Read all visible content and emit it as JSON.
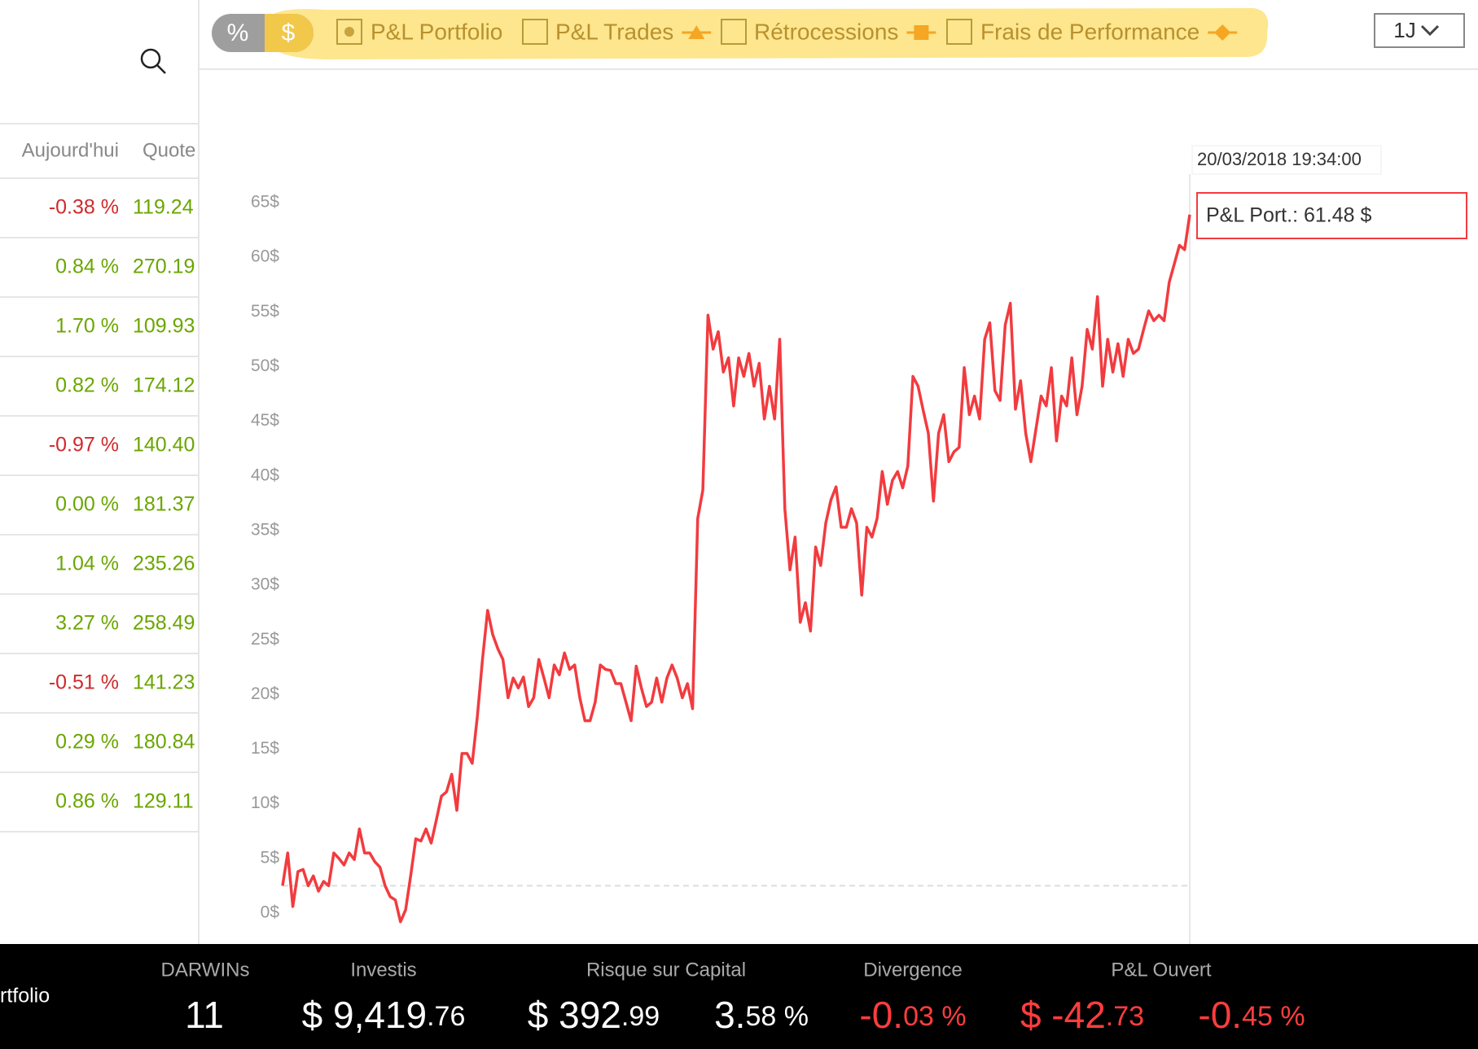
{
  "search_icon": "search",
  "toolbar": {
    "unit_toggle": [
      "%",
      "$"
    ],
    "legend": [
      {
        "label": "P&L Portfolio",
        "checked": true
      },
      {
        "label": "P&L Trades",
        "checked": false
      },
      {
        "label": "Rétrocessions",
        "checked": false
      },
      {
        "label": "Frais de Performance",
        "checked": false
      }
    ],
    "period": "1J"
  },
  "table": {
    "headers": [
      "Aujourd'hui",
      "Quote"
    ],
    "rows": [
      [
        "-0.38 %",
        "119.24"
      ],
      [
        "0.84 %",
        "270.19"
      ],
      [
        "1.70 %",
        "109.93"
      ],
      [
        "0.82 %",
        "174.12"
      ],
      [
        "-0.97 %",
        "140.40"
      ],
      [
        "0.00 %",
        "181.37"
      ],
      [
        "1.04 %",
        "235.26"
      ],
      [
        "3.27 %",
        "258.49"
      ],
      [
        "-0.51 %",
        "141.23"
      ],
      [
        "0.29 %",
        "180.84"
      ],
      [
        "0.86 %",
        "129.11"
      ]
    ]
  },
  "chart_data": {
    "type": "line",
    "series": [
      {
        "name": "P&L Portfolio",
        "color": "#f23b3f",
        "values": [
          2.5,
          5.5,
          0.6,
          3.8,
          4,
          2.5,
          3.4,
          2,
          2.9,
          2.5,
          5.5,
          5,
          4.4,
          5.5,
          4.9,
          7.7,
          5.5,
          5.5,
          4.7,
          4.2,
          2.5,
          1.5,
          1.2,
          -0.8,
          0.3,
          3.4,
          6.8,
          6.6,
          7.7,
          6.4,
          8.5,
          10.7,
          11.1,
          12.7,
          9.4,
          14.6,
          14.6,
          13.7,
          18,
          23.2,
          27.7,
          25.5,
          24.2,
          23.2,
          19.7,
          21.5,
          20.6,
          21.6,
          18.9,
          19.7,
          23.2,
          21.5,
          19.7,
          22.7,
          21.8,
          23.8,
          22.3,
          22.7,
          19.7,
          17.6,
          17.6,
          19.3,
          22.7,
          22.3,
          22.2,
          21,
          21,
          19.3,
          17.6,
          22.6,
          20.6,
          18.9,
          19.3,
          21.5,
          19.3,
          21.5,
          22.7,
          21.5,
          19.7,
          21,
          18.7,
          36.1,
          38.7,
          54.7,
          51.6,
          53.2,
          49.5,
          50.8,
          46.4,
          50.8,
          49.1,
          51.2,
          48.2,
          50.3,
          45.2,
          48.2,
          45.2,
          52.5,
          37,
          31.4,
          34.4,
          26.6,
          28.4,
          25.8,
          33.5,
          31.8,
          35.7,
          37.8,
          39,
          35.3,
          35.3,
          37,
          35.7,
          29.1,
          35.3,
          34.4,
          36.1,
          40.4,
          37.4,
          39.6,
          40.4,
          38.9,
          40.9,
          49.1,
          48.2,
          46,
          43.9,
          37.7,
          43.9,
          45.6,
          41.3,
          42.2,
          42.6,
          49.9,
          45.6,
          47.3,
          45.2,
          52.5,
          54,
          47.8,
          46.9,
          53.8,
          55.8,
          46.1,
          48.7,
          43.9,
          41.3,
          44.3,
          47.3,
          46.4,
          49.9,
          43.2,
          47.3,
          46.4,
          50.8,
          45.6,
          48.2,
          53.4,
          51.6,
          56.4,
          48.2,
          52.5,
          49.5,
          52.1,
          49.1,
          52.5,
          51.2,
          51.6,
          53.4,
          55.1,
          54.2,
          54.7,
          54.2,
          57.7,
          59.4,
          61.1,
          60.7,
          63.9
        ]
      }
    ],
    "ylim": [
      0,
      65
    ],
    "yticks": [
      {
        "value": 0,
        "label": "0$"
      },
      {
        "value": 5,
        "label": "5$"
      },
      {
        "value": 10,
        "label": "10$"
      },
      {
        "value": 15,
        "label": "15$"
      },
      {
        "value": 20,
        "label": "20$"
      },
      {
        "value": 25,
        "label": "25$"
      },
      {
        "value": 30,
        "label": "30$"
      },
      {
        "value": 35,
        "label": "35$"
      },
      {
        "value": 40,
        "label": "40$"
      },
      {
        "value": 45,
        "label": "45$"
      },
      {
        "value": 50,
        "label": "50$"
      },
      {
        "value": 55,
        "label": "55$"
      },
      {
        "value": 60,
        "label": "60$"
      },
      {
        "value": 65,
        "label": "65$"
      }
    ],
    "baseline": 2.5,
    "tooltip": {
      "date": "20/03/2018 19:34:00",
      "text": "P&L Port.: 61.48 $"
    }
  },
  "summary": {
    "title": "rtfolio",
    "items": [
      {
        "label": "DARWINs",
        "values": [
          [
            "11"
          ]
        ]
      },
      {
        "label": "Investis",
        "values": [
          [
            "$ 9,419",
            ".76"
          ]
        ]
      },
      {
        "label": "Risque sur Capital",
        "values": [
          [
            "$ 392",
            ".99"
          ],
          [
            "3.",
            "58 %"
          ]
        ]
      },
      {
        "label": "Divergence",
        "values": [
          [
            "-0.",
            "03 %"
          ]
        ]
      },
      {
        "label": "P&L Ouvert",
        "values": [
          [
            "$ -42",
            ".73"
          ],
          [
            "-0.",
            "45 %"
          ]
        ]
      }
    ]
  }
}
